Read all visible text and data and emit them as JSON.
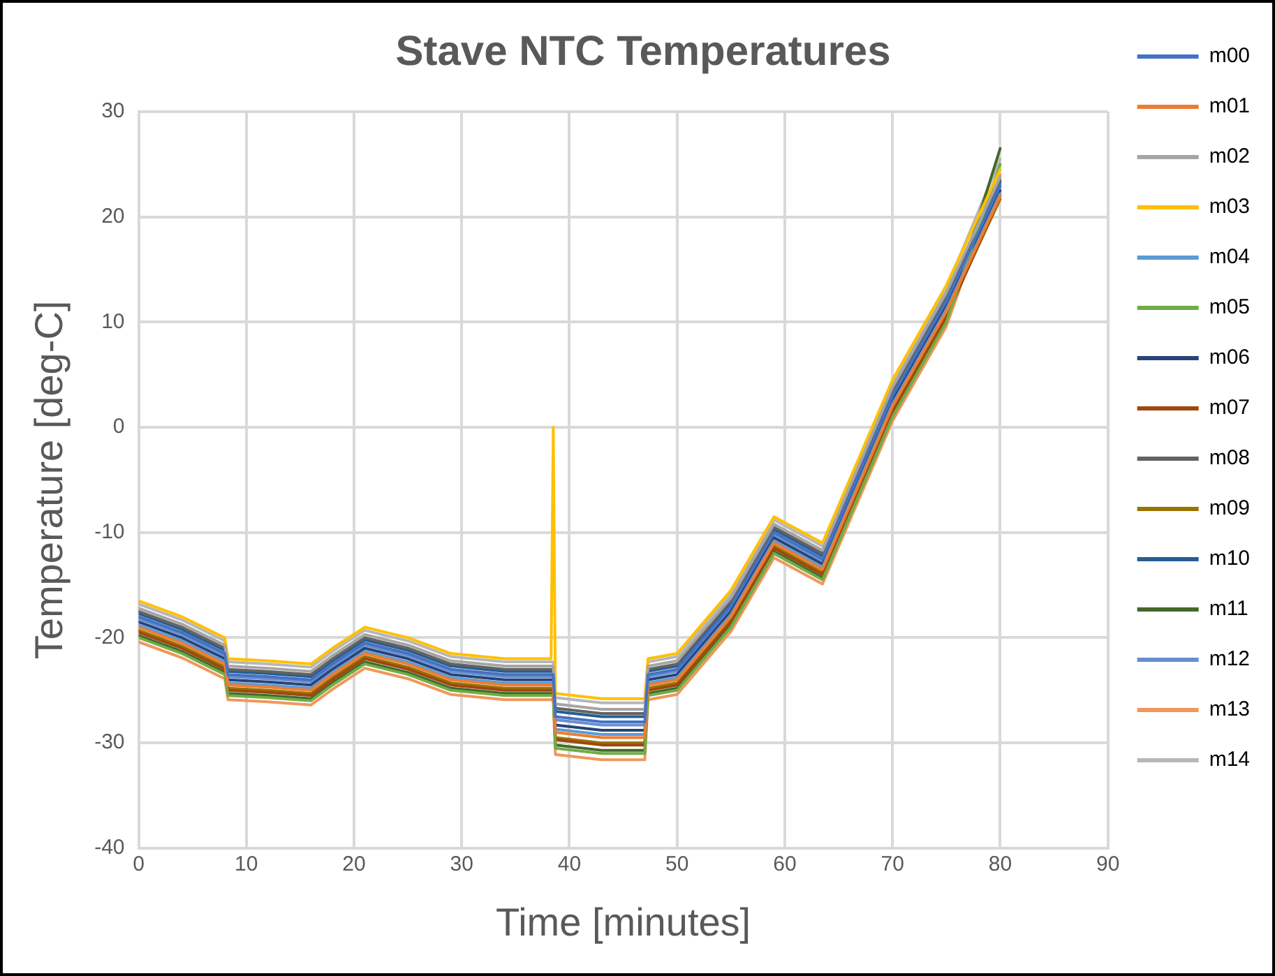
{
  "chart_data": {
    "type": "line",
    "title": "Stave NTC Temperatures",
    "xlabel": "Time [minutes]",
    "ylabel": "Temperature [deg-C]",
    "x": [
      0,
      4,
      8,
      8.3,
      12,
      16,
      18,
      21,
      25,
      29,
      34,
      38.3,
      38.5,
      38.7,
      43,
      47,
      47.3,
      50,
      55,
      59,
      63.5,
      70,
      75,
      80
    ],
    "xlim": [
      0,
      90
    ],
    "xticks": [
      0,
      10,
      20,
      30,
      40,
      50,
      60,
      70,
      80,
      90
    ],
    "ylim": [
      -40,
      30
    ],
    "yticks": [
      -40,
      -30,
      -20,
      -10,
      0,
      10,
      20,
      30
    ],
    "grid": true,
    "legend": "right",
    "series": [
      {
        "name": "m00",
        "color": "#4472c4",
        "values": [
          -18,
          -19.5,
          -21.5,
          -23.5,
          -23.7,
          -24,
          -22.5,
          -20.5,
          -21.5,
          -23,
          -23.5,
          -23.5,
          -23.5,
          -27.5,
          -28,
          -28,
          -23.5,
          -23,
          -17,
          -10,
          -12.5,
          3,
          12,
          23
        ]
      },
      {
        "name": "m01",
        "color": "#ed7d31",
        "values": [
          -19,
          -20.5,
          -22.5,
          -24.5,
          -24.7,
          -25,
          -23.5,
          -21.5,
          -22.5,
          -24,
          -24.5,
          -24.5,
          -24.5,
          -29,
          -29.5,
          -29.5,
          -24.5,
          -24,
          -18,
          -11,
          -13.5,
          2,
          11,
          22
        ]
      },
      {
        "name": "m02",
        "color": "#a5a5a5",
        "values": [
          -17.2,
          -18.7,
          -20.7,
          -22.7,
          -22.9,
          -23.2,
          -21.7,
          -19.7,
          -20.7,
          -22.2,
          -22.7,
          -22.7,
          -22.7,
          -26.3,
          -26.8,
          -26.8,
          -22.7,
          -22.2,
          -16.2,
          -9.2,
          -11.7,
          3.8,
          12.8,
          23.8
        ]
      },
      {
        "name": "m03",
        "color": "#ffc000",
        "values": [
          -16.5,
          -18,
          -20,
          -22,
          -22.2,
          -22.5,
          -21,
          -19,
          -20,
          -21.5,
          -22,
          -22,
          0,
          -25.3,
          -25.8,
          -25.8,
          -22,
          -21.5,
          -15.5,
          -8.5,
          -11,
          4.5,
          13.5,
          24.5
        ]
      },
      {
        "name": "m04",
        "color": "#5b9bd5",
        "values": [
          -18.8,
          -20.3,
          -22.3,
          -24.3,
          -24.5,
          -24.8,
          -23.3,
          -21.3,
          -22.3,
          -23.8,
          -24.3,
          -24.3,
          -24.3,
          -28.7,
          -29.2,
          -29.2,
          -24.3,
          -23.8,
          -17.8,
          -10.8,
          -13.3,
          2.2,
          11.2,
          22.2
        ]
      },
      {
        "name": "m05",
        "color": "#70ad47",
        "values": [
          -20,
          -21.5,
          -23.5,
          -25.5,
          -25.7,
          -26,
          -24.5,
          -22.5,
          -23.5,
          -25,
          -25.5,
          -25.5,
          -25.5,
          -30.5,
          -31,
          -31,
          -25.5,
          -25,
          -19,
          -12,
          -14.5,
          1,
          10,
          25
        ]
      },
      {
        "name": "m06",
        "color": "#264478",
        "values": [
          -18.5,
          -20,
          -22,
          -24,
          -24.2,
          -24.5,
          -23,
          -21,
          -22,
          -23.5,
          -24,
          -24,
          -24,
          -28.3,
          -28.8,
          -28.8,
          -24,
          -23.5,
          -17.5,
          -10.5,
          -13,
          2.5,
          11.5,
          22.5
        ]
      },
      {
        "name": "m07",
        "color": "#9e480e",
        "values": [
          -19.5,
          -21,
          -23,
          -25,
          -25.2,
          -25.5,
          -24,
          -22,
          -23,
          -24.5,
          -25,
          -25,
          -25,
          -29.7,
          -30.2,
          -30.2,
          -25,
          -24.5,
          -18.5,
          -11.5,
          -14,
          1.5,
          10.5,
          22
        ]
      },
      {
        "name": "m08",
        "color": "#636363",
        "values": [
          -17.5,
          -19,
          -21,
          -23,
          -23.2,
          -23.5,
          -22,
          -20,
          -21,
          -22.5,
          -23,
          -23,
          -23,
          -26.7,
          -27.2,
          -27.2,
          -23,
          -22.5,
          -16.5,
          -9.5,
          -12,
          3.5,
          12.5,
          23.5
        ]
      },
      {
        "name": "m09",
        "color": "#997300",
        "values": [
          -19.3,
          -20.8,
          -22.8,
          -24.8,
          -25,
          -25.3,
          -23.8,
          -21.8,
          -22.8,
          -24.3,
          -24.8,
          -24.8,
          -24.8,
          -29.5,
          -30,
          -30,
          -24.8,
          -24.3,
          -18.3,
          -11.3,
          -13.8,
          1.7,
          10.7,
          21.7
        ]
      },
      {
        "name": "m10",
        "color": "#255e91",
        "values": [
          -17.7,
          -19.2,
          -21.2,
          -23.2,
          -23.4,
          -23.7,
          -22.2,
          -20.2,
          -21.2,
          -22.7,
          -23.2,
          -23.2,
          -23.2,
          -27,
          -27.5,
          -27.5,
          -23.2,
          -22.7,
          -16.7,
          -9.7,
          -12.2,
          3.3,
          12.3,
          23.3
        ]
      },
      {
        "name": "m11",
        "color": "#43682b",
        "values": [
          -19.8,
          -21.3,
          -23.3,
          -25.3,
          -25.5,
          -25.8,
          -24.3,
          -22.3,
          -23.3,
          -24.8,
          -25.3,
          -25.3,
          -25.3,
          -30.2,
          -30.7,
          -30.7,
          -25.3,
          -24.8,
          -18.8,
          -11.8,
          -14.3,
          1.2,
          10.2,
          26.5
        ]
      },
      {
        "name": "m12",
        "color": "#698ed0",
        "values": [
          -18.2,
          -19.7,
          -21.7,
          -23.7,
          -23.9,
          -24.2,
          -22.7,
          -20.7,
          -21.7,
          -23.2,
          -23.7,
          -23.7,
          -23.7,
          -27.8,
          -28.3,
          -28.3,
          -23.7,
          -23.2,
          -17.2,
          -10.2,
          -12.7,
          2.8,
          11.8,
          22.8
        ]
      },
      {
        "name": "m13",
        "color": "#f1975a",
        "values": [
          -20.4,
          -21.9,
          -23.9,
          -25.9,
          -26.1,
          -26.4,
          -24.9,
          -22.9,
          -23.9,
          -25.4,
          -25.9,
          -25.9,
          -25.9,
          -31.1,
          -31.6,
          -31.6,
          -25.9,
          -25.4,
          -19.4,
          -12.4,
          -14.9,
          0.6,
          9.6,
          24
        ]
      },
      {
        "name": "m14",
        "color": "#b7b7b7",
        "values": [
          -16.8,
          -18.3,
          -20.3,
          -22.3,
          -22.5,
          -22.8,
          -21.3,
          -19.3,
          -20.3,
          -21.8,
          -22.3,
          -22.3,
          -22.3,
          -25.7,
          -26.2,
          -26.2,
          -22.3,
          -21.8,
          -15.8,
          -8.8,
          -11.3,
          4.2,
          13.2,
          25.5
        ]
      }
    ]
  }
}
